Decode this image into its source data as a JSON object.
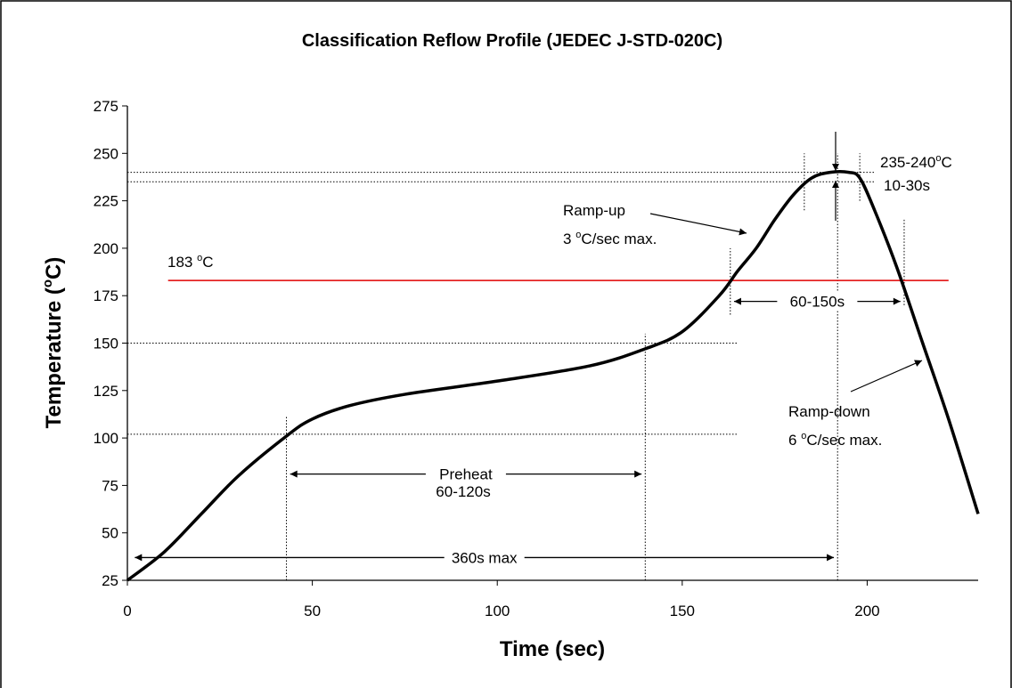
{
  "chart_data": {
    "type": "line",
    "title": "Classification Reflow Profile (JEDEC J-STD-020C)",
    "x_label": "Time (sec)",
    "y_label": [
      "Temperature (",
      "o",
      "C)"
    ],
    "xlim": [
      0,
      230
    ],
    "xticks": [
      0,
      50,
      100,
      150,
      200
    ],
    "ylim": [
      25,
      275
    ],
    "yticks": [
      25,
      50,
      75,
      100,
      125,
      150,
      175,
      200,
      225,
      250,
      275
    ],
    "series": [
      {
        "color": "#000000",
        "x": [
          0,
          10,
          20,
          30,
          43,
          50,
          60,
          75,
          100,
          125,
          140,
          150,
          160,
          165,
          170,
          175,
          180,
          185,
          190,
          195,
          198,
          202,
          208,
          215,
          222,
          230
        ],
        "values": [
          25,
          40,
          60,
          80,
          101,
          110,
          117,
          123,
          130,
          138,
          147,
          156,
          175,
          188,
          200,
          215,
          228,
          237,
          240,
          240,
          237,
          220,
          190,
          150,
          110,
          60
        ]
      }
    ],
    "red_line": {
      "value": 183,
      "from": 11,
      "to": 222,
      "color": "#e00000",
      "label": [
        "183 ",
        "o",
        "C"
      ]
    },
    "hlines": [
      {
        "y": 240,
        "from": 0,
        "to": 202
      },
      {
        "y": 235,
        "from": 0,
        "to": 202
      },
      {
        "y": 150,
        "from": 0,
        "to": 165
      },
      {
        "y": 102,
        "from": 0,
        "to": 165
      }
    ],
    "vlines": [
      {
        "x": 43,
        "from": 25,
        "to": 112
      },
      {
        "x": 140,
        "from": 25,
        "to": 155
      },
      {
        "x": 163,
        "from": 165,
        "to": 200
      },
      {
        "x": 183,
        "from": 220,
        "to": 250
      },
      {
        "x": 192,
        "from": 25,
        "to": 250
      },
      {
        "x": 198,
        "from": 225,
        "to": 250
      },
      {
        "x": 210,
        "from": 170,
        "to": 215
      }
    ],
    "spans": [
      {
        "label": "360s max",
        "from": 2,
        "to": 191,
        "y": 37
      },
      {
        "label": "60-150s",
        "from": 164,
        "to": 209,
        "y": 172
      },
      {
        "label": "Preheat",
        "from": 44,
        "to": 139,
        "y": 81
      }
    ],
    "annotations": {
      "peak": [
        [
          "235-240",
          "o",
          "C"
        ],
        [
          "10-30s"
        ]
      ],
      "ramp_up": [
        [
          "Ramp-up"
        ],
        [
          "3 ",
          "o",
          "C/sec max."
        ]
      ],
      "ramp_down": [
        [
          "Ramp-down"
        ],
        [
          "6 ",
          "o",
          "C/sec max."
        ]
      ],
      "preheat_time": "60-120s"
    }
  }
}
